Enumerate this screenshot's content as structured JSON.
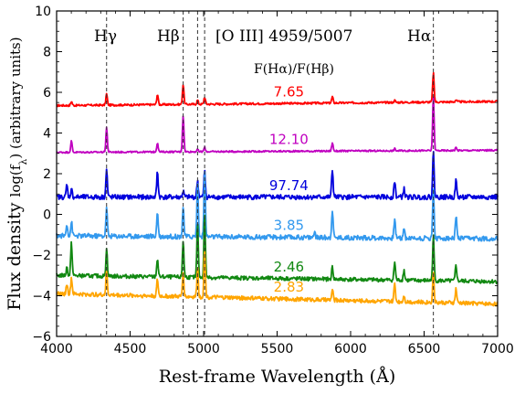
{
  "chart_data": {
    "type": "line",
    "title": "",
    "xlabel": "Rest-frame Wavelength (Å)",
    "ylabel_prefix": "Flux density ",
    "ylabel_math": "log(f",
    "ylabel_sub": "λ",
    "ylabel_suffix": ") (arbitrary units)",
    "xlim": [
      4000,
      7000
    ],
    "ylim": [
      -6,
      10
    ],
    "xticks": [
      4000,
      4500,
      5000,
      5500,
      6000,
      6500,
      7000
    ],
    "yticks": [
      -6,
      -4,
      -2,
      0,
      2,
      4,
      6,
      8,
      10
    ],
    "grid": false,
    "ratio_header": "F(Hα)/F(Hβ)",
    "lines": [
      {
        "label": "Hγ",
        "x": 4340
      },
      {
        "label": "Hβ",
        "x": 4861
      },
      {
        "label": "[O III] 4959/5007",
        "x": 4959
      },
      {
        "x": 5007
      },
      {
        "label": "Hα",
        "x": 6563
      }
    ],
    "series": [
      {
        "ratio": "7.65",
        "color": "#ff0000",
        "base_start": 5.35,
        "base_end": 5.55,
        "noise": 0.05,
        "peaks": [
          [
            4101,
            0.2
          ],
          [
            4340,
            0.55
          ],
          [
            4686,
            0.5
          ],
          [
            4861,
            1.0
          ],
          [
            4959,
            0.2
          ],
          [
            5007,
            0.35
          ],
          [
            5876,
            0.3
          ],
          [
            6300,
            0.1
          ],
          [
            6563,
            1.45
          ],
          [
            6717,
            0.1
          ]
        ]
      },
      {
        "ratio": "12.10",
        "color": "#c000c0",
        "base_start": 3.05,
        "base_end": 3.15,
        "noise": 0.04,
        "peaks": [
          [
            4101,
            0.55
          ],
          [
            4340,
            1.2
          ],
          [
            4686,
            0.45
          ],
          [
            4861,
            1.8
          ],
          [
            4959,
            0.1
          ],
          [
            5007,
            0.2
          ],
          [
            5876,
            0.4
          ],
          [
            6300,
            0.1
          ],
          [
            6563,
            2.7
          ],
          [
            6717,
            0.15
          ]
        ]
      },
      {
        "ratio": "97.74",
        "color": "#0000dd",
        "base_start": 0.85,
        "base_end": 0.85,
        "noise": 0.12,
        "peaks": [
          [
            4070,
            0.6
          ],
          [
            4101,
            0.4
          ],
          [
            4340,
            1.35
          ],
          [
            4686,
            1.25
          ],
          [
            4861,
            0.3
          ],
          [
            4959,
            0.8
          ],
          [
            5007,
            1.25
          ],
          [
            5876,
            1.35
          ],
          [
            6300,
            0.8
          ],
          [
            6363,
            0.4
          ],
          [
            6563,
            2.2
          ],
          [
            6717,
            0.8
          ]
        ]
      },
      {
        "ratio": "3.85",
        "color": "#3399ee",
        "base_start": -1.05,
        "base_end": -1.2,
        "noise": 0.12,
        "peaks": [
          [
            4070,
            0.6
          ],
          [
            4101,
            0.7
          ],
          [
            4340,
            1.4
          ],
          [
            4686,
            1.2
          ],
          [
            4861,
            1.5
          ],
          [
            4959,
            2.6
          ],
          [
            5007,
            3.2
          ],
          [
            5755,
            0.3
          ],
          [
            5876,
            1.4
          ],
          [
            6300,
            1.0
          ],
          [
            6363,
            0.5
          ],
          [
            6563,
            2.5
          ],
          [
            6717,
            1.1
          ]
        ]
      },
      {
        "ratio": "2.46",
        "color": "#118811",
        "base_start": -3.0,
        "base_end": -3.3,
        "noise": 0.1,
        "peaks": [
          [
            4070,
            0.4
          ],
          [
            4101,
            1.6
          ],
          [
            4340,
            1.35
          ],
          [
            4686,
            0.9
          ],
          [
            4861,
            1.8
          ],
          [
            4959,
            2.6
          ],
          [
            5007,
            3.1
          ],
          [
            5876,
            0.6
          ],
          [
            6300,
            0.9
          ],
          [
            6363,
            0.5
          ],
          [
            6563,
            2.2
          ],
          [
            6717,
            0.8
          ]
        ]
      },
      {
        "ratio": "2.83",
        "color": "#ffa500",
        "base_start": -3.9,
        "base_end": -4.4,
        "noise": 0.1,
        "peaks": [
          [
            4070,
            0.5
          ],
          [
            4101,
            0.8
          ],
          [
            4340,
            1.15
          ],
          [
            4686,
            0.8
          ],
          [
            4861,
            1.2
          ],
          [
            4959,
            1.4
          ],
          [
            5007,
            2.3
          ],
          [
            5876,
            0.5
          ],
          [
            6300,
            0.9
          ],
          [
            6363,
            0.3
          ],
          [
            6563,
            1.5
          ],
          [
            6717,
            0.7
          ]
        ]
      }
    ]
  }
}
